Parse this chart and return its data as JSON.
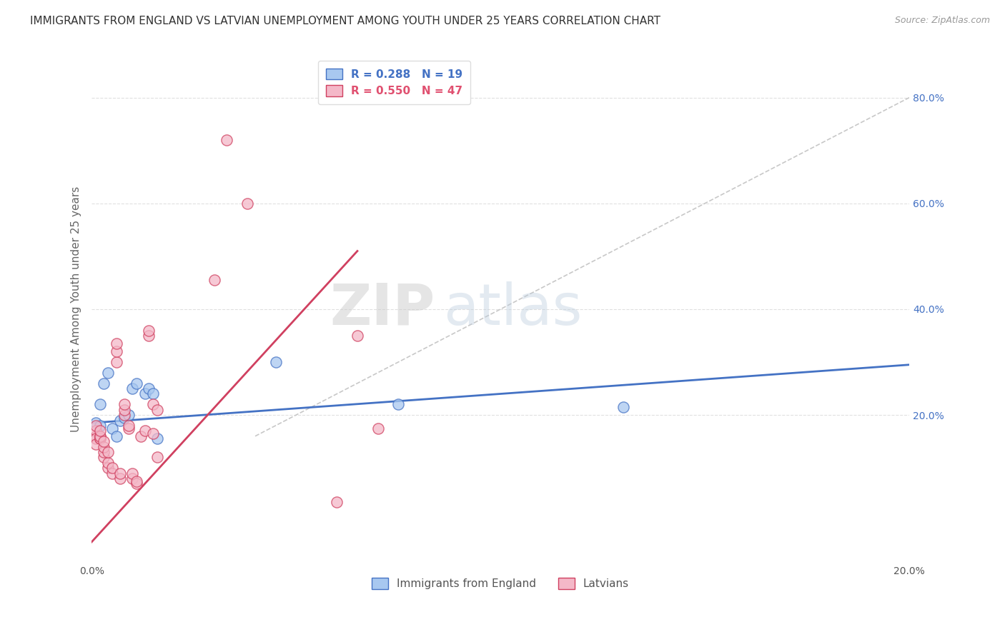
{
  "title": "IMMIGRANTS FROM ENGLAND VS LATVIAN UNEMPLOYMENT AMONG YOUTH UNDER 25 YEARS CORRELATION CHART",
  "source": "Source: ZipAtlas.com",
  "ylabel": "Unemployment Among Youth under 25 years",
  "xlim": [
    0.0,
    0.2
  ],
  "ylim": [
    -0.08,
    0.88
  ],
  "xticks": [
    0.0,
    0.2
  ],
  "xtick_labels": [
    "0.0%",
    "20.0%"
  ],
  "yticks_right": [
    0.2,
    0.4,
    0.6,
    0.8
  ],
  "ytick_labels_right": [
    "20.0%",
    "40.0%",
    "60.0%",
    "80.0%"
  ],
  "legend_entries": [
    {
      "label": "R = 0.288   N = 19",
      "color": "#4472c4"
    },
    {
      "label": "R = 0.550   N = 47",
      "color": "#e05070"
    }
  ],
  "legend_bottom": [
    {
      "label": "Immigrants from England",
      "color": "#7ab3e0"
    },
    {
      "label": "Latvians",
      "color": "#f4a0b0"
    }
  ],
  "blue_scatter_x": [
    0.001,
    0.002,
    0.002,
    0.003,
    0.004,
    0.005,
    0.006,
    0.007,
    0.008,
    0.009,
    0.01,
    0.011,
    0.013,
    0.014,
    0.015,
    0.016,
    0.045,
    0.075,
    0.13
  ],
  "blue_scatter_y": [
    0.185,
    0.18,
    0.22,
    0.26,
    0.28,
    0.175,
    0.16,
    0.19,
    0.195,
    0.2,
    0.25,
    0.26,
    0.24,
    0.25,
    0.24,
    0.155,
    0.3,
    0.22,
    0.215
  ],
  "pink_scatter_x": [
    0.001,
    0.001,
    0.001,
    0.001,
    0.001,
    0.002,
    0.002,
    0.002,
    0.002,
    0.002,
    0.003,
    0.003,
    0.003,
    0.003,
    0.004,
    0.004,
    0.004,
    0.005,
    0.005,
    0.006,
    0.006,
    0.006,
    0.007,
    0.007,
    0.008,
    0.008,
    0.008,
    0.009,
    0.009,
    0.01,
    0.01,
    0.011,
    0.011,
    0.012,
    0.013,
    0.014,
    0.014,
    0.015,
    0.015,
    0.016,
    0.016,
    0.03,
    0.033,
    0.038,
    0.06,
    0.065,
    0.07
  ],
  "pink_scatter_y": [
    0.16,
    0.17,
    0.18,
    0.155,
    0.145,
    0.155,
    0.16,
    0.155,
    0.16,
    0.17,
    0.12,
    0.13,
    0.14,
    0.15,
    0.1,
    0.11,
    0.13,
    0.09,
    0.1,
    0.3,
    0.32,
    0.335,
    0.08,
    0.09,
    0.2,
    0.21,
    0.22,
    0.175,
    0.18,
    0.08,
    0.09,
    0.07,
    0.075,
    0.16,
    0.17,
    0.35,
    0.36,
    0.165,
    0.22,
    0.21,
    0.12,
    0.455,
    0.72,
    0.6,
    0.035,
    0.35,
    0.175
  ],
  "blue_line_x": [
    0.0,
    0.2
  ],
  "blue_line_y": [
    0.185,
    0.295
  ],
  "pink_line_x": [
    0.0,
    0.065
  ],
  "pink_line_y": [
    -0.04,
    0.51
  ],
  "ref_line_x": [
    0.04,
    0.2
  ],
  "ref_line_y": [
    0.16,
    0.8
  ],
  "watermark_zip": "ZIP",
  "watermark_atlas": "atlas",
  "title_fontsize": 11,
  "axis_color": "#4472c4",
  "scatter_blue_color": "#a8c8f0",
  "scatter_pink_color": "#f4b8c8",
  "line_blue_color": "#4472c4",
  "line_pink_color": "#d04060",
  "ref_line_color": "#c8c8c8",
  "grid_color": "#e0e0e0",
  "background_color": "#ffffff"
}
